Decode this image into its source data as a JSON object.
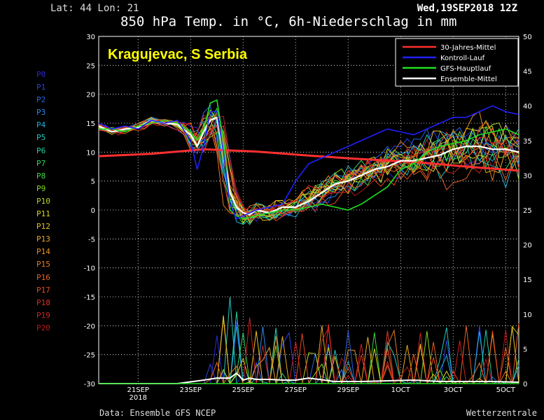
{
  "header": {
    "latlon": "Lat: 44 Lon: 21",
    "date": "Wed,19SEP2018 12Z",
    "title": "850 hPa Temp. in °C, 6h-Niederschlag in mm"
  },
  "footer": {
    "source": "Data: Ensemble GFS NCEP",
    "brand": "Wetterzentrale"
  },
  "place_label": "Kragujevac, S Serbia",
  "members": [
    {
      "name": "P0",
      "color": "#2a2ad8"
    },
    {
      "name": "P1",
      "color": "#2a44e0"
    },
    {
      "name": "P2",
      "color": "#2a64e8"
    },
    {
      "name": "P3",
      "color": "#2a8aee"
    },
    {
      "name": "P4",
      "color": "#20b0d8"
    },
    {
      "name": "P5",
      "color": "#20c8c0"
    },
    {
      "name": "P6",
      "color": "#20d0a0"
    },
    {
      "name": "P7",
      "color": "#30d860"
    },
    {
      "name": "P8",
      "color": "#40d840"
    },
    {
      "name": "P9",
      "color": "#80d820"
    },
    {
      "name": "P10",
      "color": "#b0d820"
    },
    {
      "name": "P11",
      "color": "#d8d820"
    },
    {
      "name": "P12",
      "color": "#e8c020"
    },
    {
      "name": "P13",
      "color": "#e8a820"
    },
    {
      "name": "P14",
      "color": "#e89020"
    },
    {
      "name": "P15",
      "color": "#e87820"
    },
    {
      "name": "P16",
      "color": "#e86020"
    },
    {
      "name": "P17",
      "color": "#e84820"
    },
    {
      "name": "P18",
      "color": "#e03020"
    },
    {
      "name": "P19",
      "color": "#d02020"
    },
    {
      "name": "P20",
      "color": "#b81818"
    }
  ],
  "chart_data": {
    "type": "line",
    "title": "850 hPa Temp. in °C, 6h-Niederschlag in mm",
    "left_axis": {
      "range": [
        -30,
        30
      ],
      "ticks": [
        30,
        25,
        20,
        15,
        10,
        5,
        0,
        -5,
        -10,
        -15,
        -20,
        -25,
        -30
      ]
    },
    "right_axis": {
      "range": [
        0,
        50
      ],
      "ticks": [
        50,
        45,
        40,
        35,
        30,
        25,
        20,
        15,
        10,
        5,
        0
      ]
    },
    "x_axis": {
      "range_days_from_start": [
        0,
        16
      ],
      "ticks": [
        {
          "day": 1.5,
          "label": "21SEP",
          "sub": "2018"
        },
        {
          "day": 3.5,
          "label": "23SEP",
          "sub": ""
        },
        {
          "day": 5.5,
          "label": "25SEP",
          "sub": ""
        },
        {
          "day": 7.5,
          "label": "27SEP",
          "sub": ""
        },
        {
          "day": 9.5,
          "label": "29SEP",
          "sub": ""
        },
        {
          "day": 11.5,
          "label": "1OCT",
          "sub": ""
        },
        {
          "day": 13.5,
          "label": "3OCT",
          "sub": ""
        },
        {
          "day": 15.5,
          "label": "5OCT",
          "sub": ""
        }
      ]
    },
    "grid": true,
    "legend": {
      "position": "top-right",
      "entries": [
        {
          "name": "30-Jahres-Mittel",
          "color": "#ff3030"
        },
        {
          "name": "Kontroll-Lauf",
          "color": "#2020ff"
        },
        {
          "name": "GFS-Hauptlauf",
          "color": "#20e020"
        },
        {
          "name": "Ensemble-Mittel",
          "color": "#ffffff"
        }
      ]
    },
    "series": [
      {
        "name": "30-Jahres-Mittel",
        "color": "#ff3030",
        "x": [
          0,
          2,
          4,
          6,
          8,
          10,
          12,
          14,
          16
        ],
        "values": [
          9.3,
          9.7,
          10.5,
          10.1,
          9.4,
          8.8,
          8.3,
          7.5,
          6.8
        ]
      },
      {
        "name": "Ensemble-Mittel",
        "color": "#ffffff",
        "x": [
          0,
          0.5,
          1,
          1.5,
          2,
          2.5,
          3,
          3.5,
          3.75,
          4,
          4.25,
          4.5,
          4.75,
          5,
          5.25,
          5.5,
          5.75,
          6,
          6.5,
          7,
          7.5,
          8,
          8.5,
          9,
          9.5,
          10,
          10.5,
          11,
          11.5,
          12,
          12.5,
          13,
          13.5,
          14,
          14.5,
          15,
          15.5,
          16
        ],
        "values": [
          14.5,
          13.5,
          14,
          14.2,
          15.5,
          15,
          14.8,
          13,
          11,
          13.5,
          15.5,
          16,
          10,
          3,
          0.5,
          -0.5,
          -0.8,
          0,
          -0.5,
          0.5,
          0.5,
          1.5,
          3,
          4.5,
          5,
          6,
          7,
          7.5,
          8.5,
          8.5,
          9,
          9.5,
          10.5,
          11,
          11,
          10.5,
          10.5,
          10
        ]
      },
      {
        "name": "GFS-Hauptlauf",
        "color": "#20e020",
        "x": [
          0,
          0.5,
          1,
          1.5,
          2,
          2.5,
          3,
          3.5,
          3.75,
          4,
          4.25,
          4.5,
          4.75,
          5,
          5.25,
          5.5,
          6,
          6.5,
          7,
          7.5,
          8,
          8.5,
          9,
          9.5,
          10,
          10.5,
          11,
          11.5,
          12,
          12.5,
          13,
          13.5,
          14,
          14.5,
          15,
          15.5,
          16
        ],
        "values": [
          14,
          14,
          13.5,
          14.5,
          15,
          15.5,
          15,
          13.5,
          12,
          14,
          18.5,
          19,
          12,
          0,
          -1,
          -1.5,
          -1,
          -0.5,
          0,
          0,
          0.5,
          1,
          0.5,
          0,
          1,
          2.5,
          4,
          7,
          8,
          10,
          11,
          11.5,
          12,
          13,
          13.5,
          14,
          13
        ]
      },
      {
        "name": "Kontroll-Lauf",
        "color": "#2020ff",
        "x": [
          0,
          0.5,
          1,
          1.5,
          2,
          2.5,
          3,
          3.5,
          3.75,
          4,
          4.25,
          4.5,
          4.75,
          5,
          5.25,
          5.5,
          6,
          6.5,
          7,
          7.5,
          8,
          8.5,
          9,
          9.5,
          10,
          10.5,
          11,
          11.5,
          12,
          12.5,
          13,
          13.5,
          14,
          14.5,
          15,
          15.5,
          16
        ],
        "values": [
          15,
          14,
          14.5,
          14,
          15.5,
          15,
          15.5,
          12,
          7,
          11,
          17,
          17,
          10,
          1,
          -1.5,
          -1,
          0,
          0.5,
          1,
          5,
          8,
          9,
          10,
          11,
          12,
          13,
          14,
          13.5,
          13,
          14,
          15,
          16,
          16,
          17,
          18,
          17,
          16.5
        ]
      }
    ],
    "precip_series": [
      {
        "name": "Ensemble-Mittel",
        "color": "#ffffff",
        "x": [
          0,
          3,
          4,
          4.5,
          5,
          5.25,
          5.5,
          5.75,
          6,
          6.5,
          7,
          7.5,
          8,
          9,
          10,
          11,
          12,
          13,
          14,
          15,
          16
        ],
        "values": [
          0,
          0,
          0.5,
          0.8,
          0.8,
          1.5,
          0.5,
          0.8,
          0.6,
          0.6,
          0.5,
          0.5,
          0.8,
          0.3,
          0.3,
          0.4,
          0.5,
          0.3,
          0.3,
          0.3,
          0.2
        ]
      },
      {
        "name": "GFS-Hauptlauf",
        "color": "#20e020",
        "x": [
          0,
          4,
          5,
          5.5,
          6,
          6.5,
          7,
          8,
          9,
          10,
          11,
          12,
          13,
          14,
          15,
          15.5,
          16
        ],
        "values": [
          0,
          0,
          0,
          0,
          0,
          0,
          0,
          0,
          0,
          0,
          0,
          0,
          0,
          0,
          0,
          0,
          0
        ]
      }
    ]
  }
}
